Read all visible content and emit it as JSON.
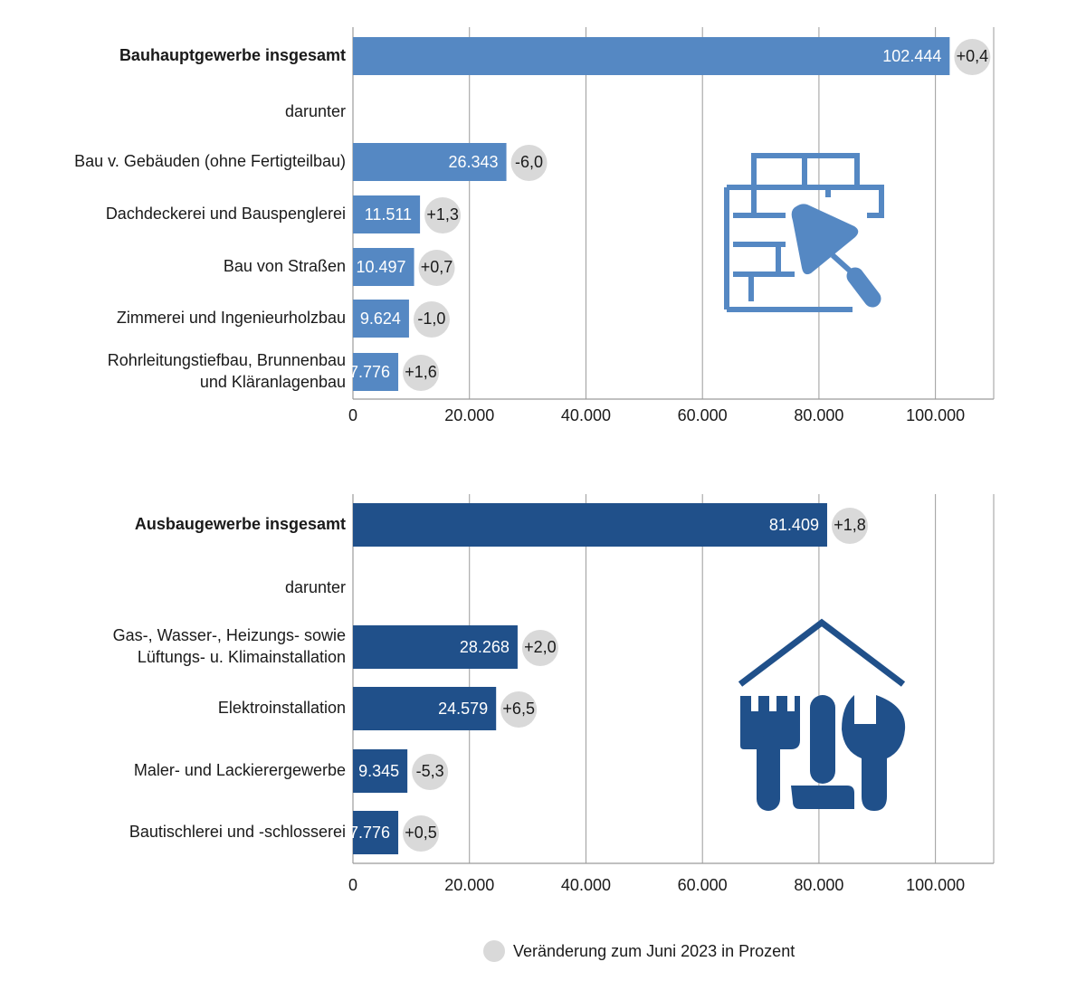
{
  "colors": {
    "series_upper": "#5588c3",
    "series_lower": "#20508a",
    "grid": "#9b9b9b",
    "bubble": "#d9d9d9",
    "icon_upper": "#5588c3",
    "icon_lower": "#20508a"
  },
  "icons": {
    "upper": "brick-wall-trowel-icon",
    "lower": "house-tools-icon"
  },
  "legend": {
    "label": "Veränderung zum Juni 2023 in Prozent"
  },
  "chart_data": [
    {
      "type": "bar",
      "orientation": "horizontal",
      "xlim": [
        0,
        110000
      ],
      "ticks": [
        0,
        20000,
        40000,
        60000,
        80000,
        100000
      ],
      "tick_labels": [
        "0",
        "20.000",
        "40.000",
        "60.000",
        "80.000",
        "100.000"
      ],
      "grid": true,
      "rows": [
        {
          "lines": [
            "Bauhauptgewerbe insgesamt"
          ],
          "value": 102444,
          "value_label": "102.444",
          "change": "+0,4",
          "bold": true
        },
        {
          "lines": [
            "darunter"
          ],
          "value": null,
          "value_label": "",
          "change": "",
          "bold": false
        },
        {
          "lines": [
            "Bau v. Gebäuden (ohne Fertigteilbau)"
          ],
          "value": 26343,
          "value_label": "26.343",
          "change": "-6,0",
          "bold": false
        },
        {
          "lines": [
            "Dachdeckerei und Bauspenglerei"
          ],
          "value": 11511,
          "value_label": "11.511",
          "change": "+1,3",
          "bold": false
        },
        {
          "lines": [
            "Bau von Straßen"
          ],
          "value": 10497,
          "value_label": "10.497",
          "change": "+0,7",
          "bold": false
        },
        {
          "lines": [
            "Zimmerei und Ingenieurholzbau"
          ],
          "value": 9624,
          "value_label": "9.624",
          "change": "-1,0",
          "bold": false
        },
        {
          "lines": [
            "Rohrleitungstiefbau, Brunnenbau",
            "und Kläranlagenbau"
          ],
          "value": 7776,
          "value_label": "7.776",
          "change": "+1,6",
          "bold": false
        }
      ]
    },
    {
      "type": "bar",
      "orientation": "horizontal",
      "xlim": [
        0,
        110000
      ],
      "ticks": [
        0,
        20000,
        40000,
        60000,
        80000,
        100000
      ],
      "tick_labels": [
        "0",
        "20.000",
        "40.000",
        "60.000",
        "80.000",
        "100.000"
      ],
      "grid": true,
      "rows": [
        {
          "lines": [
            "Ausbaugewerbe insgesamt"
          ],
          "value": 81409,
          "value_label": "81.409",
          "change": "+1,8",
          "bold": true
        },
        {
          "lines": [
            "darunter"
          ],
          "value": null,
          "value_label": "",
          "change": "",
          "bold": false
        },
        {
          "lines": [
            "Gas-, Wasser-, Heizungs- sowie",
            "Lüftungs- u. Klimainstallation"
          ],
          "value": 28268,
          "value_label": "28.268",
          "change": "+2,0",
          "bold": false
        },
        {
          "lines": [
            "Elektroinstallation"
          ],
          "value": 24579,
          "value_label": "24.579",
          "change": "+6,5",
          "bold": false
        },
        {
          "lines": [
            "Maler- und Lackierergewerbe"
          ],
          "value": 9345,
          "value_label": "9.345",
          "change": "-5,3",
          "bold": false
        },
        {
          "lines": [
            "Bautischlerei und -schlosserei"
          ],
          "value": 7776,
          "value_label": "7.776",
          "change": "+0,5",
          "bold": false
        }
      ]
    }
  ]
}
